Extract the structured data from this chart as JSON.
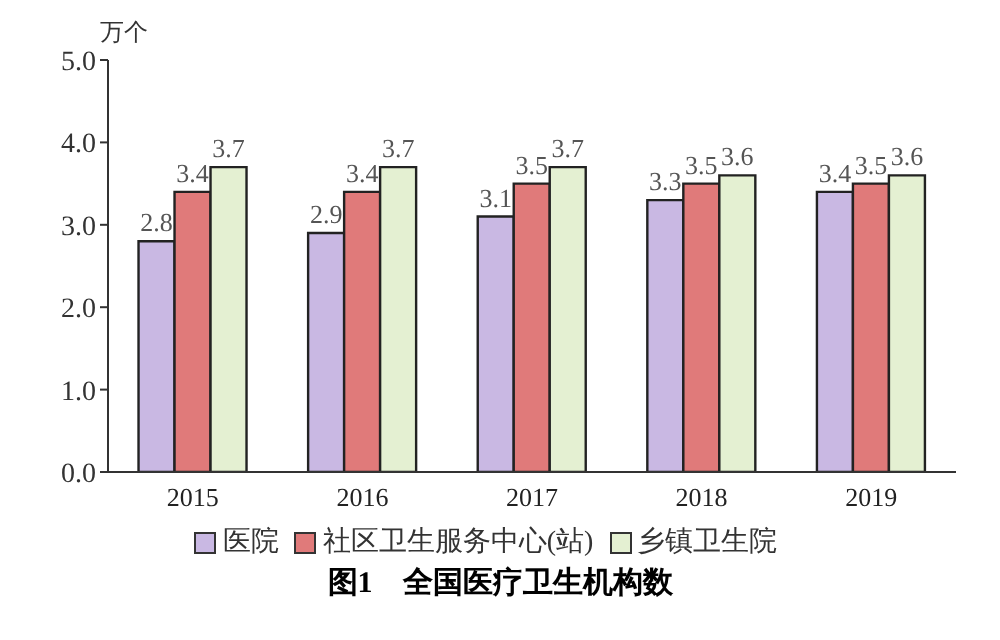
{
  "chart_data": {
    "type": "bar",
    "title": "图1　全国医疗卫生机构数",
    "ylabel": "万个",
    "categories": [
      "2015",
      "2016",
      "2017",
      "2018",
      "2019"
    ],
    "series": [
      {
        "name": "医院",
        "color": "#c9b8e3",
        "values": [
          2.8,
          2.9,
          3.1,
          3.3,
          3.4
        ]
      },
      {
        "name": "社区卫生服务中心(站)",
        "color": "#e07a7a",
        "values": [
          3.4,
          3.4,
          3.5,
          3.5,
          3.5
        ]
      },
      {
        "name": "乡镇卫生院",
        "color": "#e4f0d2",
        "values": [
          3.7,
          3.7,
          3.7,
          3.6,
          3.6
        ]
      }
    ],
    "ylim": [
      0,
      5
    ],
    "yticks": [
      {
        "value": 0,
        "label": "0.0"
      },
      {
        "value": 1,
        "label": "1.0"
      },
      {
        "value": 2,
        "label": "2.0"
      },
      {
        "value": 3,
        "label": "3.0"
      },
      {
        "value": 4,
        "label": "4.0"
      },
      {
        "value": 5,
        "label": "5.0"
      }
    ],
    "data_labels": true,
    "grid": false,
    "legend": "bottom"
  }
}
